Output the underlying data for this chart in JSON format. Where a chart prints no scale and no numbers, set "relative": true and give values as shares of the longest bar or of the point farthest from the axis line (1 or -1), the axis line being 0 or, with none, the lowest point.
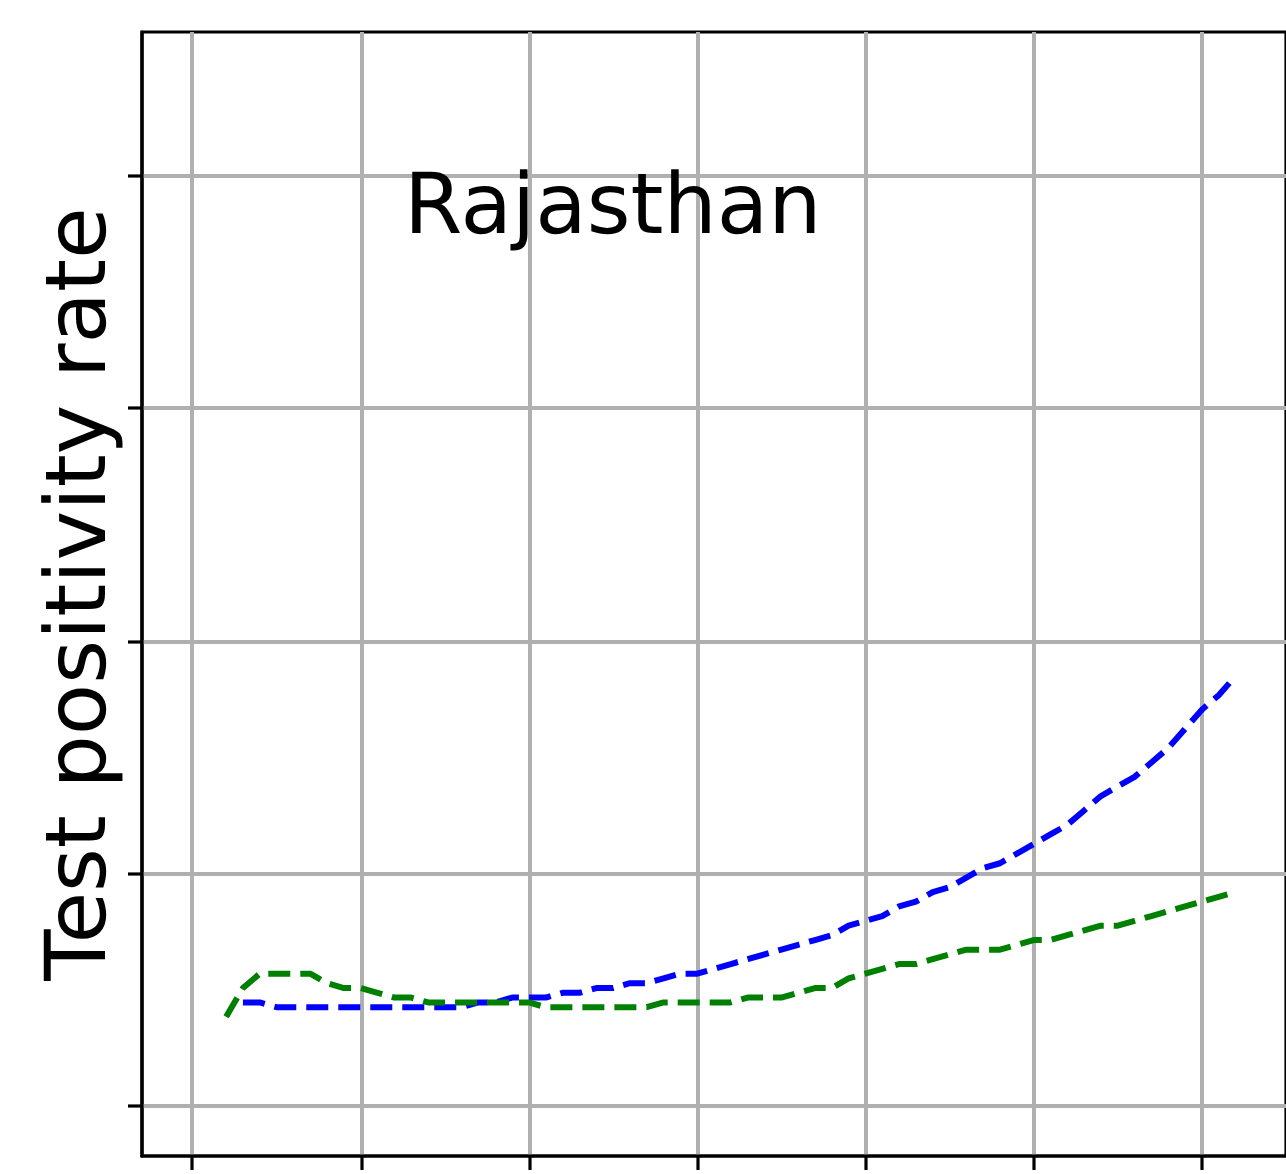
{
  "chart_data": {
    "type": "line",
    "title": "Rajasthan",
    "ylabel": "Test positivity rate",
    "relative": true,
    "categories": [
      null,
      null,
      null,
      null,
      null,
      null,
      null,
      null,
      null,
      null,
      null,
      null,
      null,
      null,
      null,
      null,
      null,
      null,
      null,
      null,
      null,
      null,
      null,
      null,
      null,
      null,
      null,
      null,
      null,
      null,
      null,
      null,
      null,
      null,
      null,
      null,
      null,
      null,
      null,
      null,
      null,
      null,
      null,
      null,
      null,
      null,
      null,
      null,
      null,
      null,
      null,
      null,
      null,
      null,
      null,
      null,
      null,
      null,
      null,
      null,
      null,
      null,
      null,
      null,
      null,
      null,
      null,
      null,
      null
    ],
    "series": [
      {
        "color": "#0000ff",
        "values": [
          null,
          null,
          null,
          null,
          null,
          null,
          0.32,
          0.32,
          0.31,
          0.31,
          0.31,
          0.31,
          0.31,
          0.31,
          0.31,
          0.31,
          0.31,
          0.31,
          0.31,
          0.31,
          0.32,
          0.32,
          0.33,
          0.33,
          0.33,
          0.34,
          0.34,
          0.35,
          0.35,
          0.36,
          0.36,
          0.37,
          0.38,
          0.38,
          0.39,
          0.4,
          0.41,
          0.42,
          0.43,
          0.44,
          0.45,
          0.46,
          0.48,
          0.49,
          0.5,
          0.52,
          0.53,
          0.55,
          0.56,
          0.58,
          0.6,
          0.61,
          0.63,
          0.65,
          0.67,
          0.69,
          0.72,
          0.75,
          0.77,
          0.79,
          0.82,
          0.85,
          0.89,
          0.93,
          0.96,
          1,
          null,
          null,
          null
        ]
      },
      {
        "color": "#008000",
        "values": [
          null,
          null,
          null,
          null,
          null,
          0.29,
          0.35,
          0.38,
          0.38,
          0.38,
          0.38,
          0.36,
          0.35,
          0.35,
          0.34,
          0.33,
          0.33,
          0.32,
          0.32,
          0.32,
          0.32,
          0.32,
          0.32,
          0.32,
          0.31,
          0.31,
          0.31,
          0.31,
          0.31,
          0.31,
          0.31,
          0.32,
          0.32,
          0.32,
          0.32,
          0.32,
          0.33,
          0.33,
          0.33,
          0.34,
          0.35,
          0.35,
          0.37,
          0.38,
          0.39,
          0.4,
          0.4,
          0.41,
          0.42,
          0.43,
          0.43,
          0.43,
          0.44,
          0.45,
          0.45,
          0.46,
          0.47,
          0.48,
          0.48,
          0.49,
          0.5,
          0.51,
          0.52,
          0.53,
          0.54,
          0.55,
          null,
          null,
          null
        ]
      }
    ],
    "grid": true,
    "line_style": "dashed",
    "tick_labels": false
  }
}
